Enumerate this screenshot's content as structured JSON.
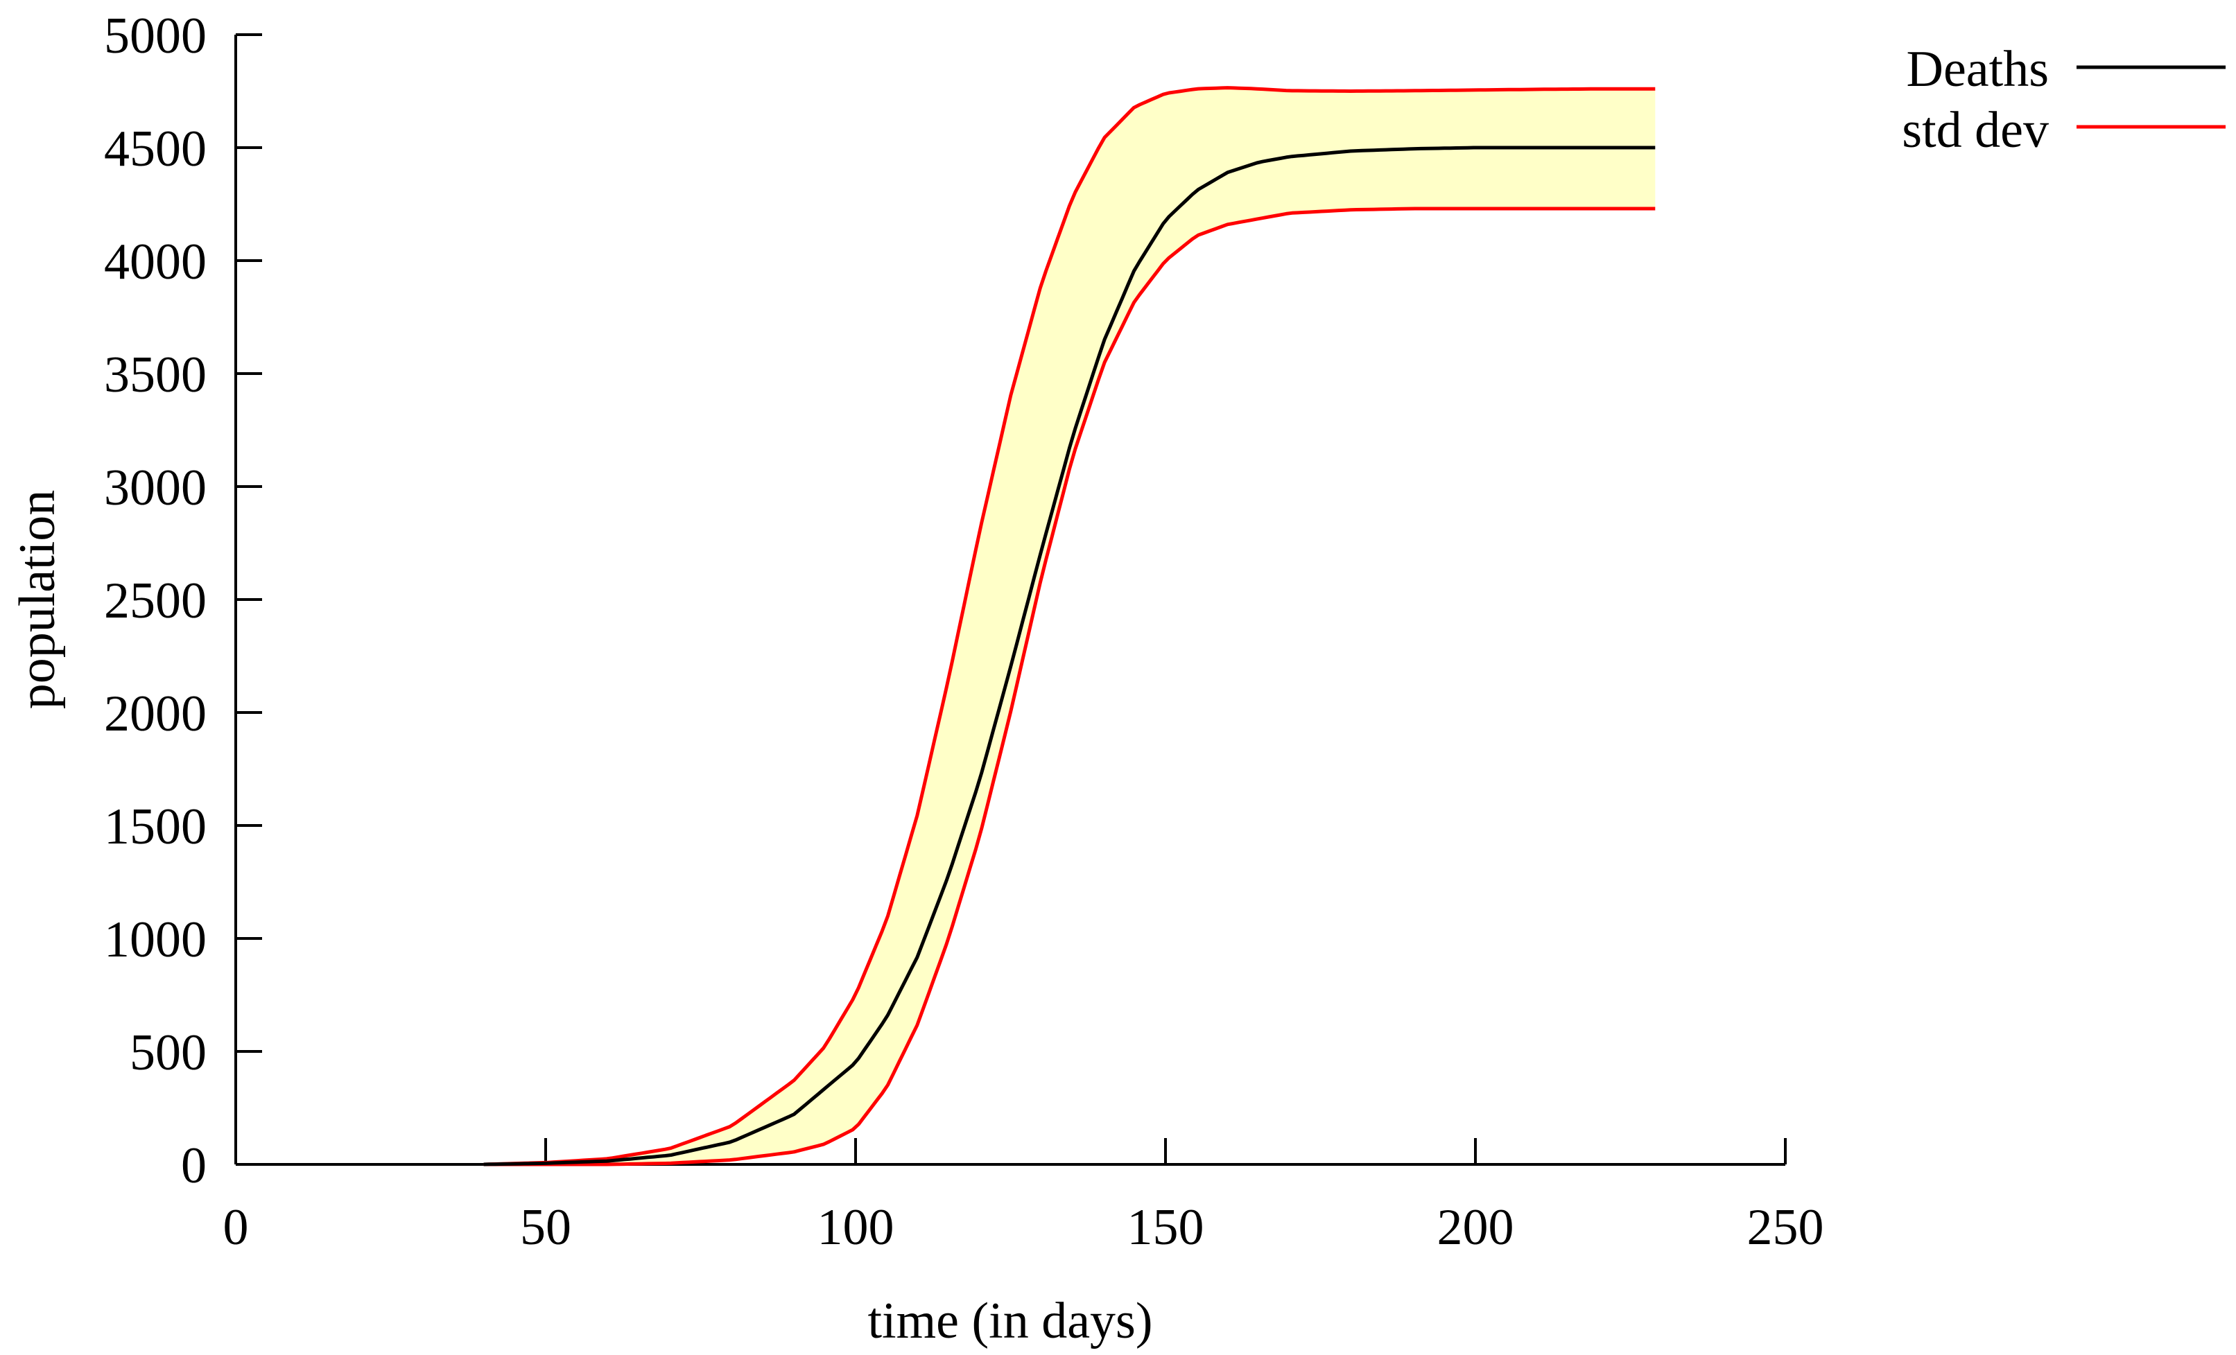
{
  "chart_data": {
    "type": "area",
    "title": "",
    "xlabel": "time (in days)",
    "ylabel": "population",
    "xlim": [
      0,
      250
    ],
    "ylim": [
      0,
      5000
    ],
    "xticks": [
      "0",
      "50",
      "100",
      "150",
      "200",
      "250"
    ],
    "yticks": [
      "0",
      "500",
      "1000",
      "1500",
      "2000",
      "2500",
      "3000",
      "3500",
      "4000",
      "4500",
      "5000"
    ],
    "grid": false,
    "legend_position": "top-right",
    "band_color": "#ffffc8",
    "series": [
      {
        "name": "Deaths",
        "color": "#000000",
        "x": [
          40,
          50,
          60,
          70,
          80,
          90,
          100,
          105,
          110,
          115,
          120,
          125,
          130,
          135,
          140,
          145,
          150,
          155,
          160,
          165,
          170,
          180,
          190,
          200,
          210,
          220,
          229
        ],
        "y": [
          0,
          5,
          15,
          40,
          100,
          220,
          450,
          650,
          920,
          1280,
          1700,
          2200,
          2720,
          3220,
          3640,
          3960,
          4180,
          4310,
          4390,
          4435,
          4460,
          4485,
          4495,
          4500,
          4500,
          4500,
          4500
        ]
      },
      {
        "name": "std dev",
        "role": "upper",
        "color": "#ff0000",
        "x": [
          40,
          50,
          60,
          70,
          80,
          90,
          95,
          100,
          105,
          110,
          115,
          120,
          125,
          130,
          135,
          140,
          145,
          150,
          155,
          160,
          165,
          170,
          180,
          190,
          200,
          210,
          220,
          229
        ],
        "y": [
          0,
          8,
          25,
          70,
          170,
          370,
          520,
          750,
          1080,
          1550,
          2150,
          2800,
          3400,
          3900,
          4280,
          4540,
          4680,
          4740,
          4760,
          4765,
          4760,
          4752,
          4750,
          4752,
          4755,
          4758,
          4760,
          4760
        ]
      },
      {
        "name": "",
        "role": "lower",
        "color": "#ff0000",
        "x": [
          40,
          60,
          70,
          80,
          90,
          95,
          100,
          105,
          110,
          115,
          120,
          125,
          130,
          135,
          140,
          145,
          150,
          155,
          160,
          170,
          180,
          190,
          200,
          210,
          220,
          229
        ],
        "y": [
          0,
          0,
          5,
          20,
          55,
          90,
          160,
          340,
          620,
          1000,
          1450,
          2000,
          2600,
          3130,
          3540,
          3820,
          4000,
          4110,
          4160,
          4210,
          4225,
          4230,
          4230,
          4230,
          4230,
          4230
        ]
      }
    ]
  }
}
